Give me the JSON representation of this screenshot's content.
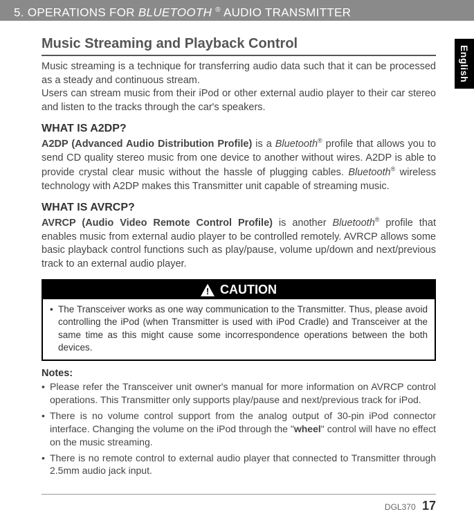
{
  "header": {
    "section_number": "5.",
    "section_title_1": "OPERATIONS FOR ",
    "section_title_italic": "BLUETOOTH ",
    "section_title_reg": "®",
    "section_title_2": " AUDIO TRANSMITTER"
  },
  "sidetab": {
    "label": "English"
  },
  "main": {
    "title": "Music Streaming and Playback Control",
    "intro": "Music streaming is a technique for transferring audio data such that it can be processed as a steady and continuous stream.",
    "intro2": "Users can stream music from their iPod or other external audio player to their car stereo and listen to the tracks through the car's speakers.",
    "a2dp_title": "WHAT IS A2DP?",
    "a2dp_bold": "A2DP (Advanced Audio Distribution Profile)",
    "a2dp_body_1": " is a ",
    "a2dp_body_italic": "Bluetooth",
    "a2dp_body_2": " profile that allows you to send CD quality stereo music from one device to another without wires. A2DP is able to provide crystal clear music without the hassle of plugging cables. ",
    "a2dp_body_italic2": "Bluetooth",
    "a2dp_body_3": " wireless technology with A2DP makes this Transmitter unit capable of streaming music.",
    "avrcp_title": "WHAT IS AVRCP?",
    "avrcp_bold": "AVRCP (Audio Video Remote Control Profile)",
    "avrcp_body_1": " is another ",
    "avrcp_body_italic": "Bluetooth",
    "avrcp_body_2": " profile that enables music from external audio player to be controlled remotely. AVRCP allows some basic playback control functions such as play/pause, volume up/down and next/previous track to an external audio player.",
    "caution_label": "CAUTION",
    "caution_text": "The Transceiver works as one way communication to the Transmitter. Thus, please avoid controlling the iPod (when Transmitter is used with iPod Cradle) and Transceiver at the same time as this might cause some incorrespondence operations between the both devices.",
    "notes_title": "Notes:",
    "notes": [
      "Please refer the Transceiver unit owner's manual for more information on AVRCP control operations. This Transmitter only supports play/pause and next/previous track for iPod.",
      "There is no volume control support from the analog output of 30-pin iPod connector interface. Changing the volume on the iPod through the \"wheel\" control will have no effect on the music streaming.",
      "There is no remote control to external audio player that connected to Transmitter through 2.5mm audio jack input."
    ],
    "note2_pre": "There is no volume control support from the analog output of 30-pin iPod connector interface. Changing the volume on the iPod through the \"",
    "note2_bold": "wheel",
    "note2_post": "\" control will have no effect on the music streaming."
  },
  "footer": {
    "model": "DGL370",
    "page": "17"
  }
}
